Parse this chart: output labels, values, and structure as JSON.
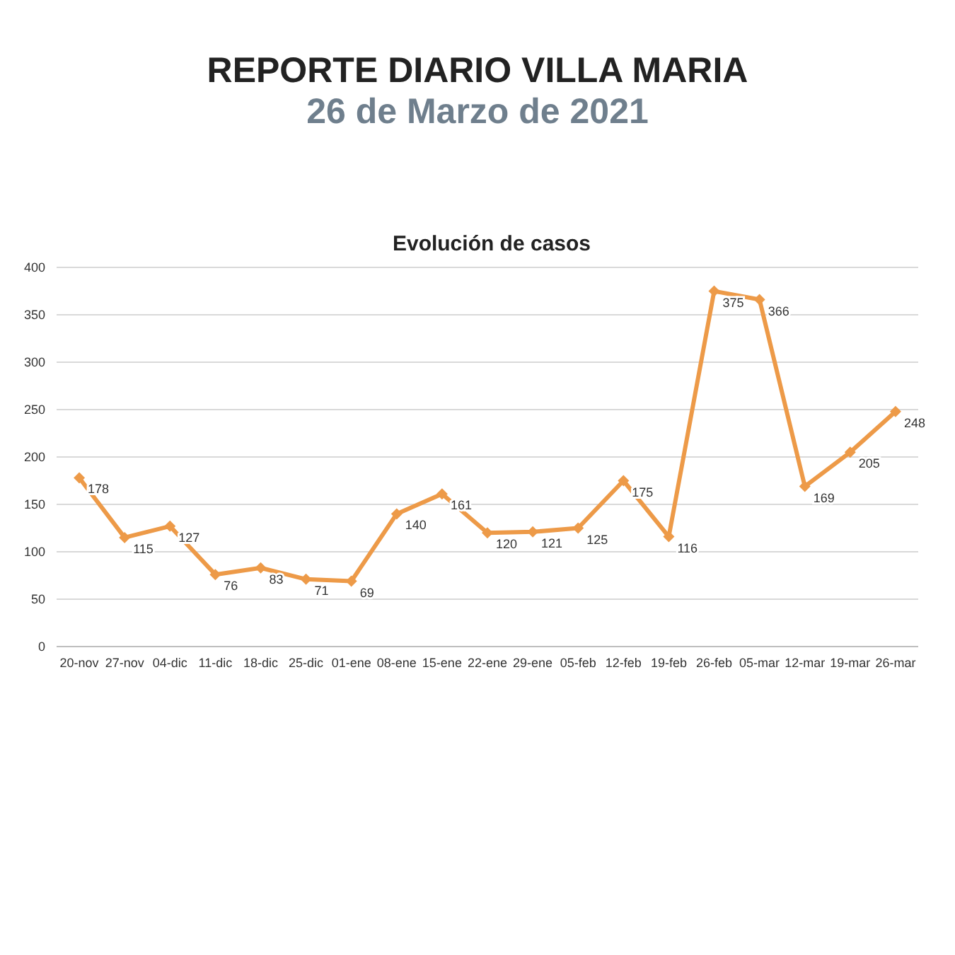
{
  "chart_data": {
    "type": "line",
    "title": "REPORTE DIARIO VILLA MARIA",
    "subtitle": "26 de Marzo de 2021",
    "annotations": [
      "Evolución de casos"
    ],
    "categories": [
      "20-nov",
      "27-nov",
      "04-dic",
      "11-dic",
      "18-dic",
      "25-dic",
      "01-ene",
      "08-ene",
      "15-ene",
      "22-ene",
      "29-ene",
      "05-feb",
      "12-feb",
      "19-feb",
      "26-feb",
      "05-mar",
      "12-mar",
      "19-mar",
      "26-mar"
    ],
    "series": [
      {
        "color": "#ed9a48",
        "values": [
          178,
          115,
          127,
          76,
          83,
          71,
          69,
          140,
          161,
          120,
          121,
          125,
          175,
          116,
          375,
          366,
          169,
          205,
          248
        ]
      }
    ],
    "ylim": [
      0,
      400
    ],
    "yticks": [
      0,
      50,
      100,
      150,
      200,
      250,
      300,
      350,
      400
    ],
    "grid": "y",
    "legend": false,
    "marker": "diamond",
    "line_style": "solid",
    "data_labels": true
  }
}
